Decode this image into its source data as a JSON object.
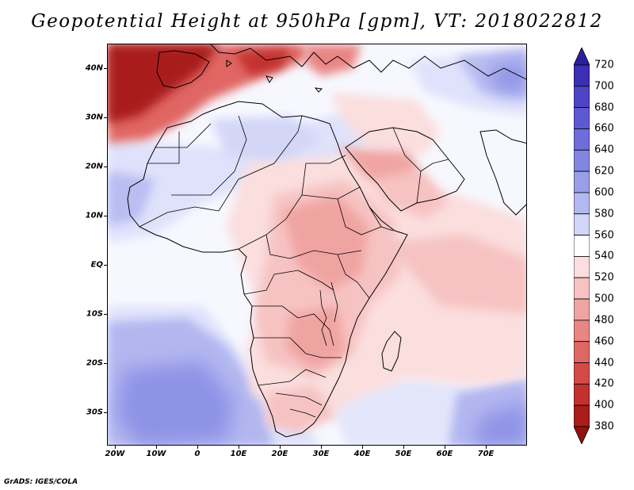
{
  "title": "Geopotential Height at 950hPa [gpm], VT: 2018022812",
  "credit": "GrADS: IGES/COLA",
  "map": {
    "lat_labels": [
      "40N",
      "30N",
      "20N",
      "10N",
      "EQ",
      "10S",
      "20S",
      "30S"
    ],
    "lon_labels": [
      "20W",
      "10W",
      "0",
      "10E",
      "20E",
      "30E",
      "40E",
      "50E",
      "60E",
      "70E"
    ]
  },
  "colorbar": {
    "levels": [
      "720",
      "700",
      "680",
      "660",
      "640",
      "620",
      "600",
      "580",
      "560",
      "540",
      "520",
      "500",
      "480",
      "460",
      "440",
      "420",
      "400",
      "380"
    ],
    "colors": [
      "#2a1f9e",
      "#3b2fb3",
      "#4d45c6",
      "#5d59d2",
      "#6e6ddb",
      "#8385e3",
      "#9a9ee9",
      "#b4b8f0",
      "#d3d6f7",
      "#ffffff",
      "#fbdede",
      "#f6c3c2",
      "#f0a4a2",
      "#e98583",
      "#e06663",
      "#d44a47",
      "#c3302e",
      "#a91d1b",
      "#901210"
    ]
  }
}
